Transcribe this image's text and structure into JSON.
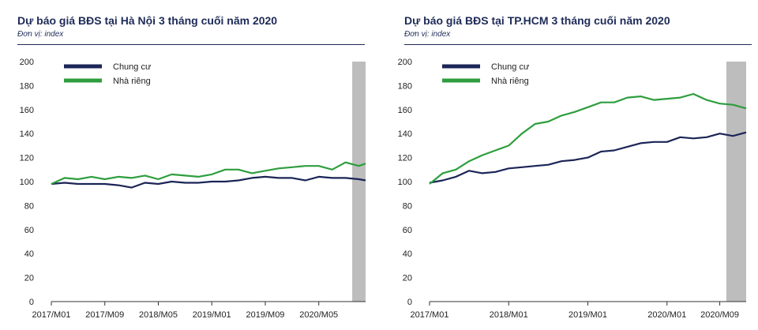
{
  "chart_data": [
    {
      "type": "line",
      "title": "Dự báo giá BĐS tại Hà Nội 3 tháng cuối năm 2020",
      "subtitle": "Đơn vị: index",
      "ylim": [
        0,
        200
      ],
      "yticks": [
        0,
        20,
        40,
        60,
        80,
        100,
        120,
        140,
        160,
        180,
        200
      ],
      "x_tick_labels": [
        "2017/M01",
        "2017/M09",
        "2018/M05",
        "2019/M01",
        "2019/M09",
        "2020/M05"
      ],
      "x_tick_months": [
        0,
        8,
        16,
        24,
        32,
        40
      ],
      "x_months_total": 47,
      "forecast_band_from_month": 45,
      "grid": false,
      "legend": "top-left",
      "colors": {
        "Chung cư": "#1b2557",
        "Nhà riêng": "#2e9e3e",
        "band": "#bdbdbd"
      },
      "series": [
        {
          "name": "Chung cư",
          "x": [
            0,
            2,
            4,
            6,
            8,
            10,
            12,
            14,
            16,
            18,
            20,
            22,
            24,
            26,
            28,
            30,
            32,
            34,
            36,
            38,
            40,
            42,
            44,
            46,
            47
          ],
          "values": [
            98,
            99,
            98,
            98,
            98,
            97,
            95,
            99,
            98,
            100,
            99,
            99,
            100,
            100,
            101,
            103,
            104,
            103,
            103,
            101,
            104,
            103,
            103,
            102,
            101
          ]
        },
        {
          "name": "Nhà riêng",
          "x": [
            0,
            2,
            4,
            6,
            8,
            10,
            12,
            14,
            16,
            18,
            20,
            22,
            24,
            26,
            28,
            30,
            32,
            34,
            36,
            38,
            40,
            42,
            44,
            46,
            47
          ],
          "values": [
            98,
            103,
            102,
            104,
            102,
            104,
            103,
            105,
            102,
            106,
            105,
            104,
            106,
            110,
            110,
            107,
            109,
            111,
            112,
            113,
            113,
            110,
            116,
            113,
            115
          ]
        }
      ]
    },
    {
      "type": "line",
      "title": "Dự báo giá BĐS tại TP.HCM 3 tháng cuối năm 2020",
      "subtitle": "Đơn vị: index",
      "ylim": [
        0,
        200
      ],
      "yticks": [
        0,
        20,
        40,
        60,
        80,
        100,
        120,
        140,
        160,
        180,
        200
      ],
      "x_tick_labels": [
        "2017/M01",
        "2018/M01",
        "2019/M01",
        "2020/M01",
        "2020/M09"
      ],
      "x_tick_months": [
        0,
        12,
        24,
        36,
        44
      ],
      "x_months_total": 48,
      "forecast_band_from_month": 45,
      "grid": false,
      "legend": "top-left",
      "colors": {
        "Chung cư": "#1b2557",
        "Nhà riêng": "#2e9e3e",
        "band": "#bdbdbd"
      },
      "series": [
        {
          "name": "Chung cư",
          "x": [
            0,
            2,
            4,
            6,
            8,
            10,
            12,
            14,
            16,
            18,
            20,
            22,
            24,
            26,
            28,
            30,
            32,
            34,
            36,
            38,
            40,
            42,
            44,
            46,
            48
          ],
          "values": [
            99,
            101,
            104,
            109,
            107,
            108,
            111,
            112,
            113,
            114,
            117,
            118,
            120,
            125,
            126,
            129,
            132,
            133,
            133,
            137,
            136,
            137,
            140,
            138,
            141
          ]
        },
        {
          "name": "Nhà riêng",
          "x": [
            0,
            2,
            4,
            6,
            8,
            10,
            12,
            14,
            16,
            18,
            20,
            22,
            24,
            26,
            28,
            30,
            32,
            34,
            36,
            38,
            40,
            42,
            44,
            46,
            48
          ],
          "values": [
            98,
            107,
            110,
            117,
            122,
            126,
            130,
            140,
            148,
            150,
            155,
            158,
            162,
            166,
            166,
            170,
            171,
            168,
            169,
            170,
            173,
            168,
            165,
            164,
            161
          ]
        }
      ]
    }
  ]
}
